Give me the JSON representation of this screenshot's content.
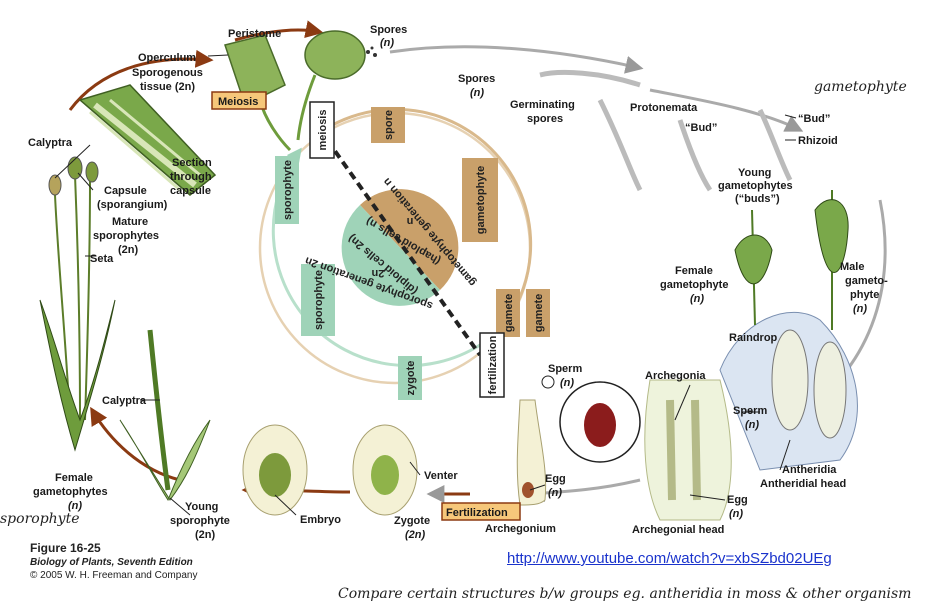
{
  "labels": {
    "peristome": "Peristome",
    "operculum": "Operculum",
    "sporogenous": "Sporogenous",
    "tissue": "tissue (2n)",
    "meiosis_box": "Meiosis",
    "spores_top": "Spores",
    "spores_top_n": "(n)",
    "spores_mid": "Spores",
    "spores_mid_n": "(n)",
    "germinating1": "Germinating",
    "germinating2": "spores",
    "protonemata": "Protonemata",
    "bud_mid": "“Bud”",
    "bud_right": "“Bud”",
    "rhizoid": "Rhizoid",
    "young_g1": "Young",
    "young_g2": "gametophytes",
    "young_g3": "(“buds”)",
    "calyptra_top": "Calyptra",
    "section1": "Section",
    "section2": "through",
    "section3": "capsule",
    "capsule1": "Capsule",
    "capsule2": "(sporangium)",
    "mature1": "Mature",
    "mature2": "sporophytes",
    "mature3": "(2n)",
    "seta": "Seta",
    "female_g1": "Female",
    "female_g2": "gametophyte",
    "female_g3": "(n)",
    "male_g1": "Male",
    "male_g2": "gameto-",
    "male_g3": "phyte",
    "male_g4": "(n)",
    "raindrop": "Raindrop",
    "archegonia": "Archegonia",
    "sperm_mid1": "Sperm",
    "sperm_mid2": "(n)",
    "sperm_right1": "Sperm",
    "sperm_right2": "(n)",
    "antheridia": "Antheridia",
    "antheridial_head": "Antheridial head",
    "egg_mid1": "Egg",
    "egg_mid2": "(n)",
    "egg_right1": "Egg",
    "egg_right2": "(n)",
    "archegonial_head": "Archegonial head",
    "archegonium": "Archegonium",
    "fertilization_box": "Fertilization",
    "venter": "Venter",
    "zygote1": "Zygote",
    "zygote2": "(2n)",
    "embryo": "Embryo",
    "young_s1": "Young",
    "young_s2": "sporophyte",
    "young_s3": "(2n)",
    "calyptra_bottom": "Calyptra",
    "female_gs1": "Female",
    "female_gs2": "gametophytes",
    "female_gs3": "(n)"
  },
  "cycle": {
    "meiosis": "meiosis",
    "spore": "spore",
    "gametophyte": "gametophyte",
    "gamete1": "gamete",
    "gamete2": "gamete",
    "fertilization": "fertilization",
    "zygote": "zygote",
    "sporophyte_lower": "sporophyte",
    "sporophyte_upper": "sporophyte",
    "gametophyte_gen": "gametophyte generation n",
    "haploid": "(haploid cells n)",
    "sporophyte_gen": "sporophyte generation 2n",
    "diploid": "(diploid cells 2n)",
    "n": "n",
    "two_n": "2n"
  },
  "handwriting": {
    "gametophyte": "gametophyte",
    "sporophyte": "sporophyte",
    "note": "Compare certain structures b/w groups   eg. antheridia in moss & other organism"
  },
  "caption": {
    "figure": "Figure 16-25",
    "book": "Biology of Plants, Seventh Edition",
    "copyright": "© 2005 W. H. Freeman and Company"
  },
  "link": "http://www.youtube.com/watch?v=xbSZbd02UEg",
  "colors": {
    "cycle_brown": "#c9a06a",
    "cycle_green": "#9fd3b8",
    "meiosis_box": "#f6c77a",
    "arrow_brown": "#8b3a12",
    "moss_green": "#6e9c3c",
    "link": "#1a33cc"
  }
}
